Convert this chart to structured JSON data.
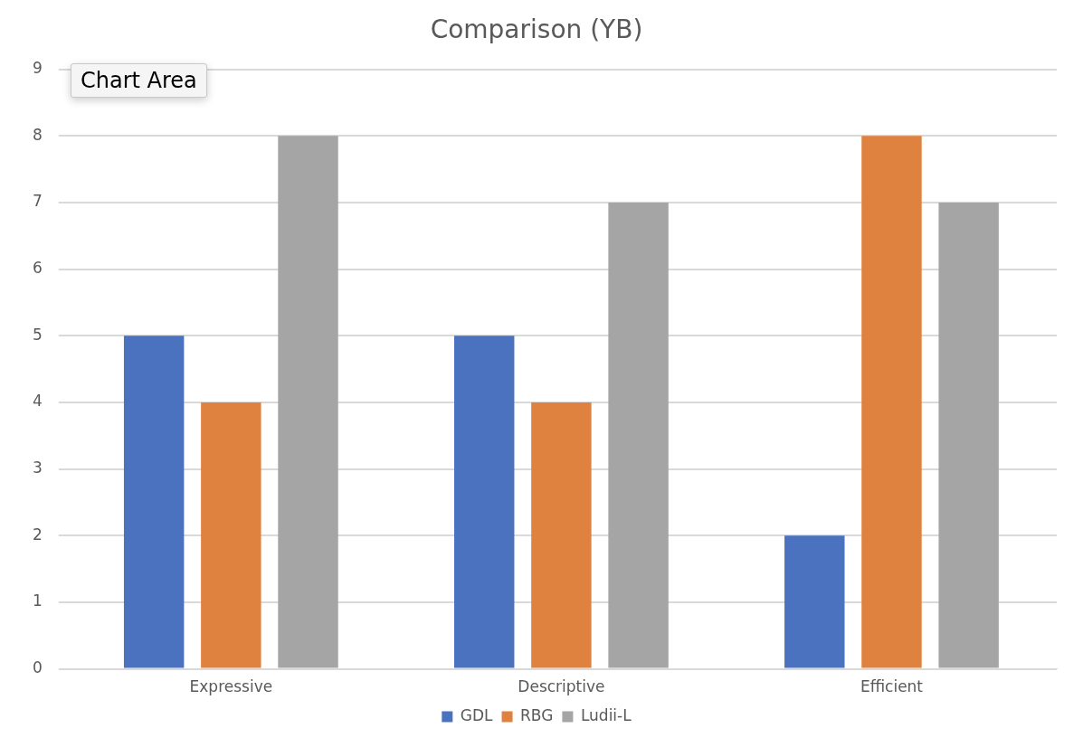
{
  "chart_data": {
    "type": "bar",
    "title": "Comparison (YB)",
    "categories": [
      "Expressive",
      "Descriptive",
      "Efficient"
    ],
    "series": [
      {
        "name": "GDL",
        "color": "#4a72bf",
        "values": [
          5,
          5,
          2
        ]
      },
      {
        "name": "RBG",
        "color": "#e0823f",
        "values": [
          4,
          4,
          8
        ]
      },
      {
        "name": "Ludii-L",
        "color": "#a5a5a5",
        "values": [
          8,
          7,
          7
        ]
      }
    ],
    "ylim": [
      0,
      9
    ],
    "yticks": [
      0,
      1,
      2,
      3,
      4,
      5,
      6,
      7,
      8,
      9
    ],
    "grid": "y",
    "legend": "bottom",
    "annotations": [
      "Chart Area"
    ]
  }
}
